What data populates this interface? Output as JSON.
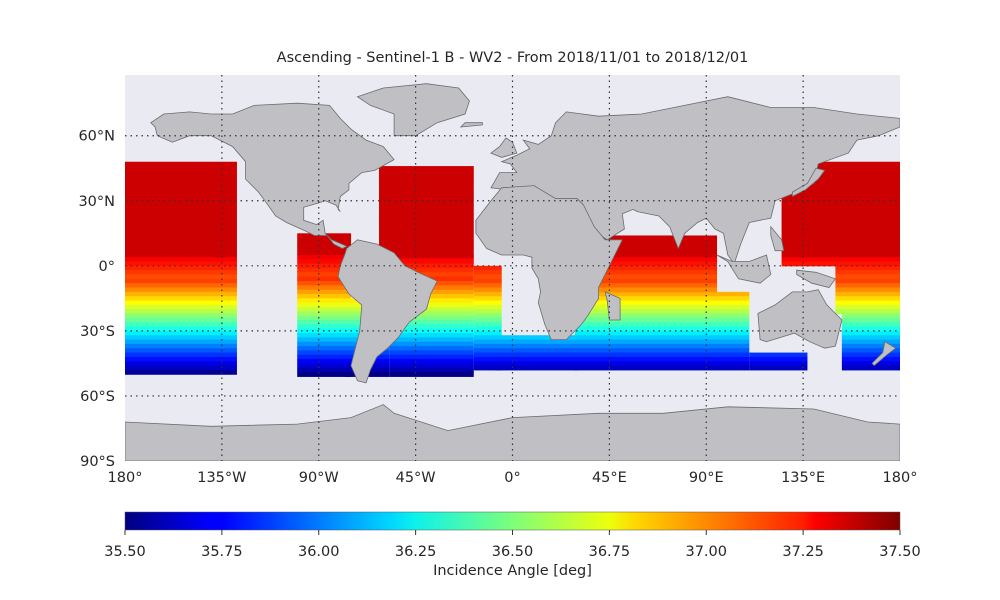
{
  "title": "Ascending - Sentinel-1 B - WV2 - From 2018/11/01 to 2018/12/01",
  "lat_ticks": [
    "60°N",
    "30°N",
    "0°",
    "30°S",
    "60°S",
    "90°S"
  ],
  "lat_values": [
    60,
    30,
    0,
    -30,
    -60,
    -90
  ],
  "lon_ticks": [
    "180°",
    "135°W",
    "90°W",
    "45°W",
    "0°",
    "45°E",
    "90°E",
    "135°E",
    "180°"
  ],
  "lon_values": [
    -180,
    -135,
    -90,
    -45,
    0,
    45,
    90,
    135,
    180
  ],
  "colorbar": {
    "label": "Incidence Angle [deg]",
    "ticks": [
      "35.50",
      "35.75",
      "36.00",
      "36.25",
      "36.50",
      "36.75",
      "37.00",
      "37.25",
      "37.50"
    ],
    "min": 35.5,
    "max": 37.5,
    "colormap": "jet"
  },
  "colors": {
    "ocean_background": "#eaeaf2",
    "land": "#c0c0c4",
    "coastline": "#6b6b70",
    "grid": "#333333"
  },
  "map_extent": {
    "lon": [
      -180,
      180
    ],
    "lat": [
      -90,
      88
    ]
  }
}
